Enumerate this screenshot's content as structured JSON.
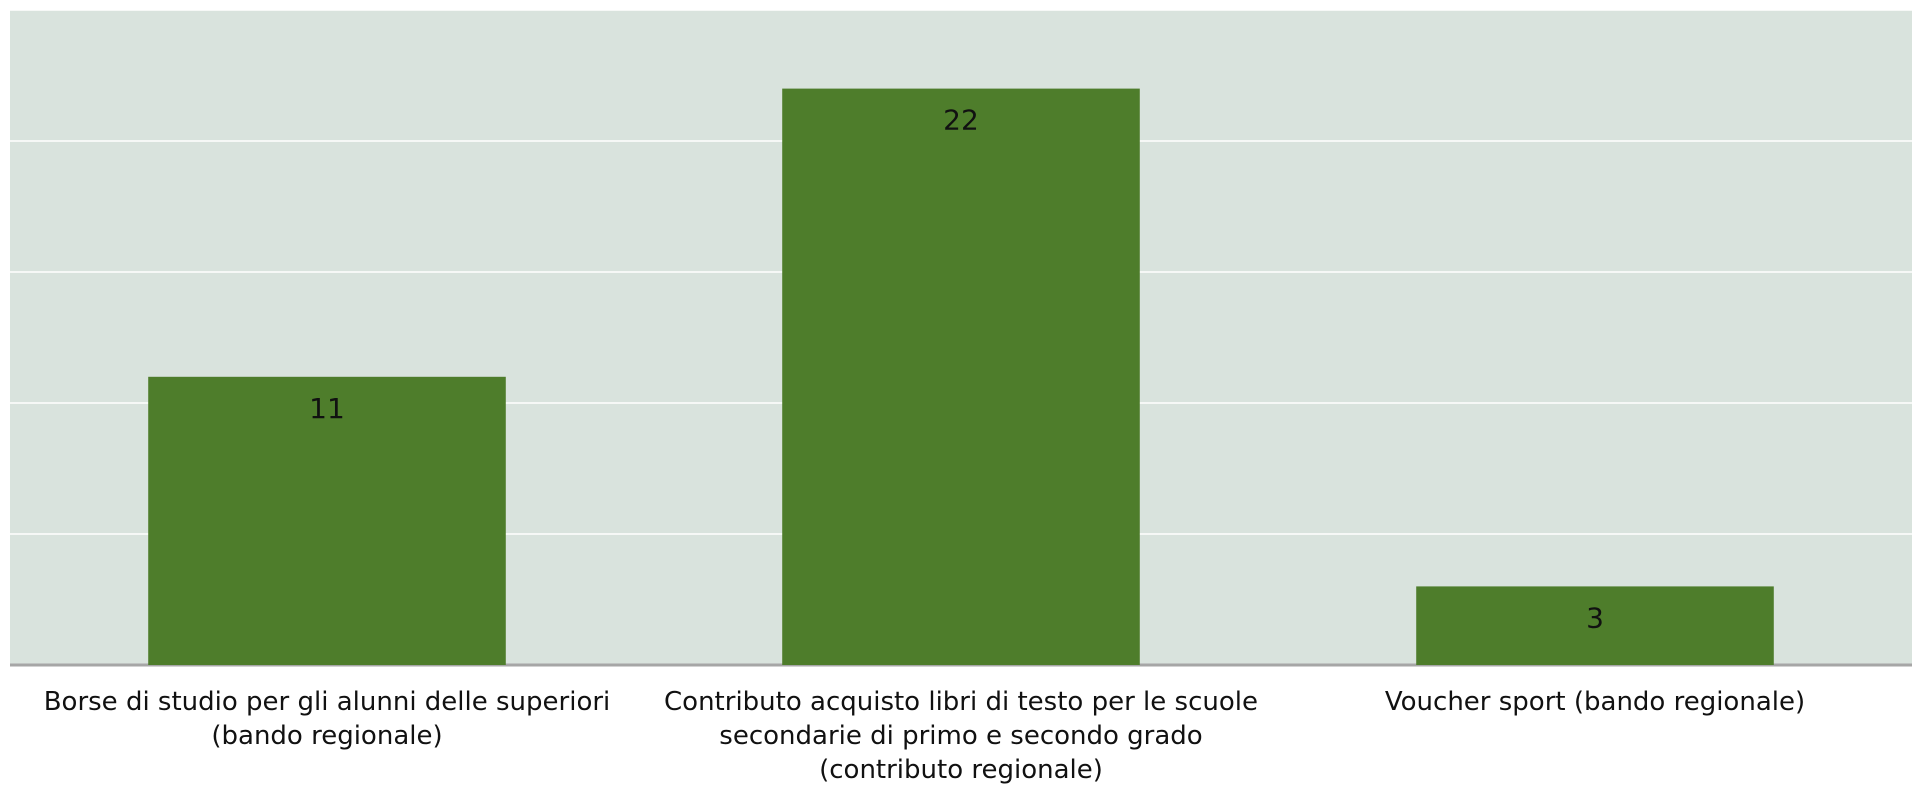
{
  "chart_data": {
    "type": "bar",
    "categories": [
      "Borse di studio per gli alunni delle superiori\n(bando regionale)",
      "Contributo acquisto libri di testo per le scuole\nsecondarie di primo e secondo grado\n(contributo regionale)",
      "Voucher sport (bando regionale)"
    ],
    "values": [
      11,
      22,
      3
    ],
    "color": "#4e7d2b",
    "ylim": [
      0,
      25
    ],
    "yticks": [
      0,
      5,
      10,
      15,
      20,
      25
    ],
    "grid": true
  }
}
